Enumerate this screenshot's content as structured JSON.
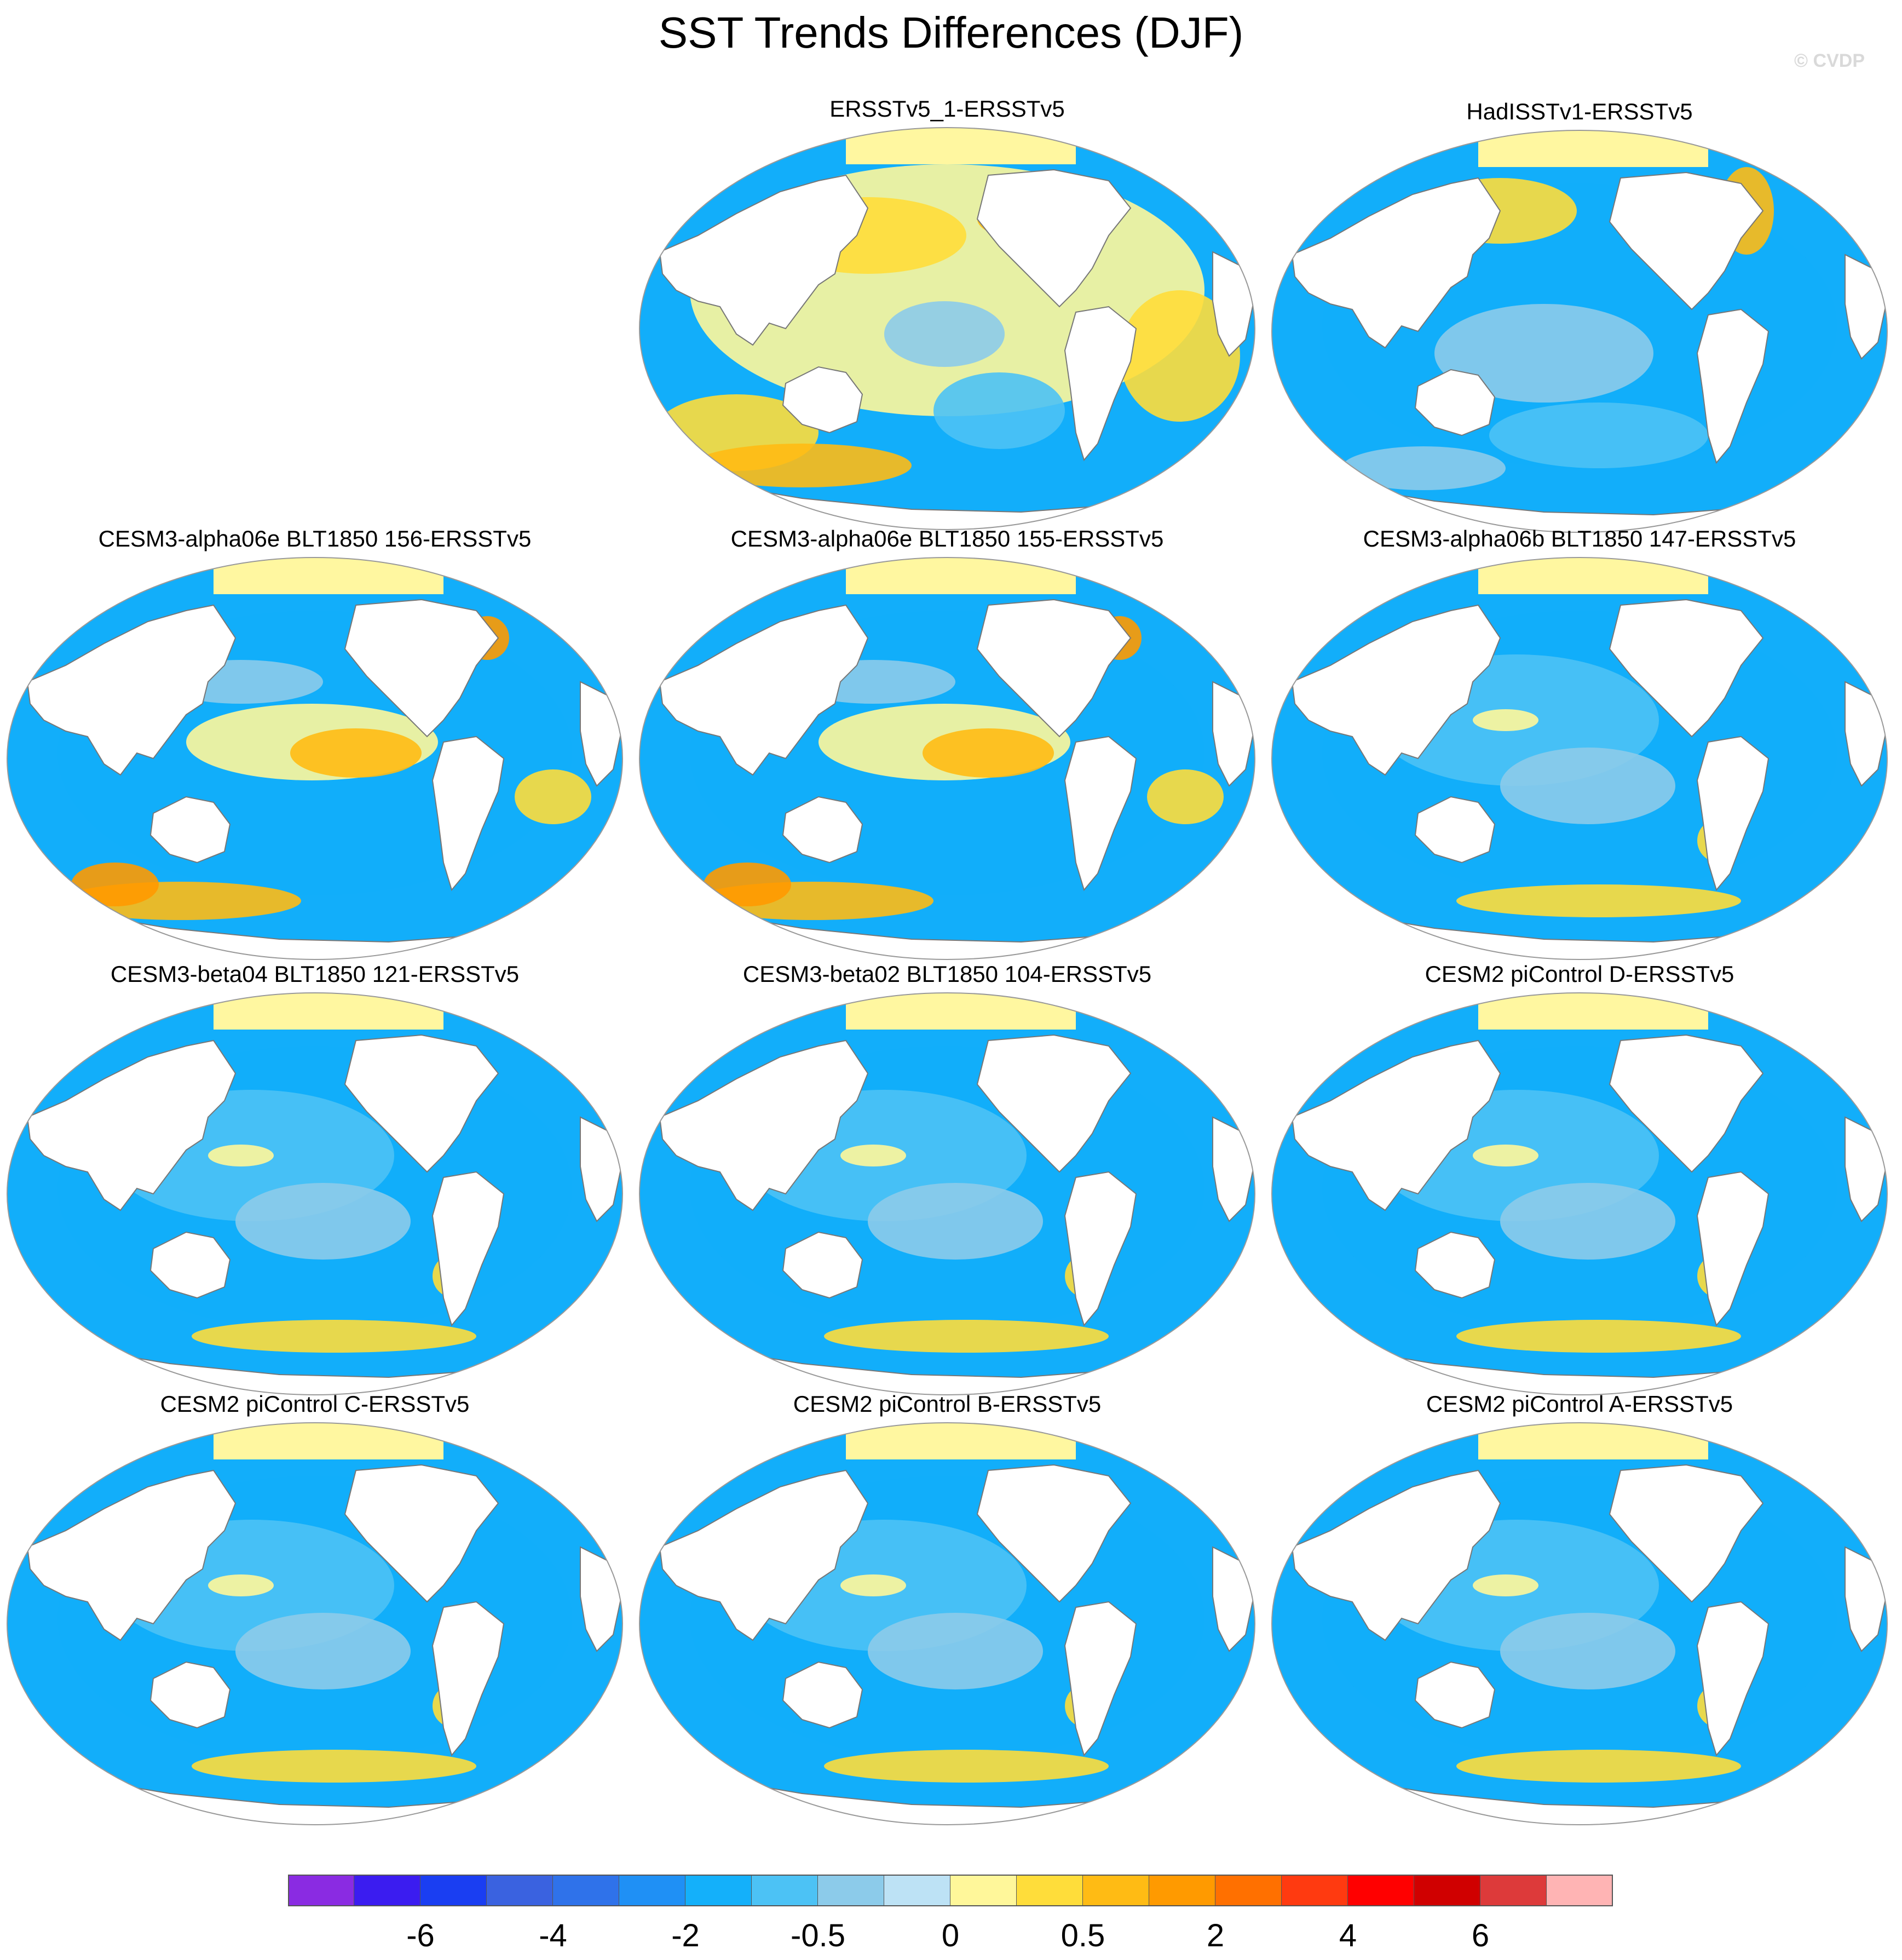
{
  "figure": {
    "title": "SST Trends Differences (DJF)",
    "copyright": "© CVDP"
  },
  "panels": [
    {
      "id": "p1",
      "title": "ERSSTv5_1-ERSSTv5",
      "pattern": "warm"
    },
    {
      "id": "p2",
      "title": "HadISSTv1-ERSSTv5",
      "pattern": "cool-mixed"
    },
    {
      "id": "p3",
      "title": "CESM3-alpha06e BLT1850 156-ERSSTv5",
      "pattern": "cool-warmband"
    },
    {
      "id": "p4",
      "title": "CESM3-alpha06e BLT1850 155-ERSSTv5",
      "pattern": "cool-warmband"
    },
    {
      "id": "p5",
      "title": "CESM3-alpha06b BLT1850 147-ERSSTv5",
      "pattern": "cool"
    },
    {
      "id": "p6",
      "title": "CESM3-beta04 BLT1850 121-ERSSTv5",
      "pattern": "cool"
    },
    {
      "id": "p7",
      "title": "CESM3-beta02 BLT1850 104-ERSSTv5",
      "pattern": "cool"
    },
    {
      "id": "p8",
      "title": "CESM2 piControl D-ERSSTv5",
      "pattern": "cool"
    },
    {
      "id": "p9",
      "title": "CESM2 piControl C-ERSSTv5",
      "pattern": "cool"
    },
    {
      "id": "p10",
      "title": "CESM2 piControl B-ERSSTv5",
      "pattern": "cool"
    },
    {
      "id": "p11",
      "title": "CESM2 piControl A-ERSSTv5",
      "pattern": "cool"
    }
  ],
  "colorbar": {
    "colors": [
      "#8a2be2",
      "#3b1cf0",
      "#1a3ef2",
      "#3a62e0",
      "#2f72ea",
      "#1f90f5",
      "#14b0fa",
      "#4cc2f5",
      "#8ccbea",
      "#bde2f5",
      "#fff79a",
      "#ffdd3a",
      "#ffbb14",
      "#ff9a00",
      "#ff7000",
      "#ff3a10",
      "#ff0000",
      "#d00000",
      "#dd3a3a",
      "#ffb4b4"
    ],
    "tick_labels": [
      {
        "text": "-6",
        "after_box": 2
      },
      {
        "text": "-4",
        "after_box": 4
      },
      {
        "text": "-2",
        "after_box": 6
      },
      {
        "text": "-0.5",
        "after_box": 8
      },
      {
        "text": "0",
        "after_box": 10
      },
      {
        "text": "0.5",
        "after_box": 12
      },
      {
        "text": "2",
        "after_box": 14
      },
      {
        "text": "4",
        "after_box": 16
      },
      {
        "text": "6",
        "after_box": 18
      }
    ]
  },
  "palette": {
    "land": "#ffffff",
    "sea_ice_fill": "#fff7a0",
    "coast": "#777777",
    "deep_cool": "#12aefa",
    "mid_cool": "#4cc2f5",
    "light_cool": "#8ccbea",
    "warm_light": "#fff79a",
    "warm_mid": "#ffdd3a",
    "warm_strong": "#ffbb14",
    "warm_hot": "#ff9a00"
  }
}
